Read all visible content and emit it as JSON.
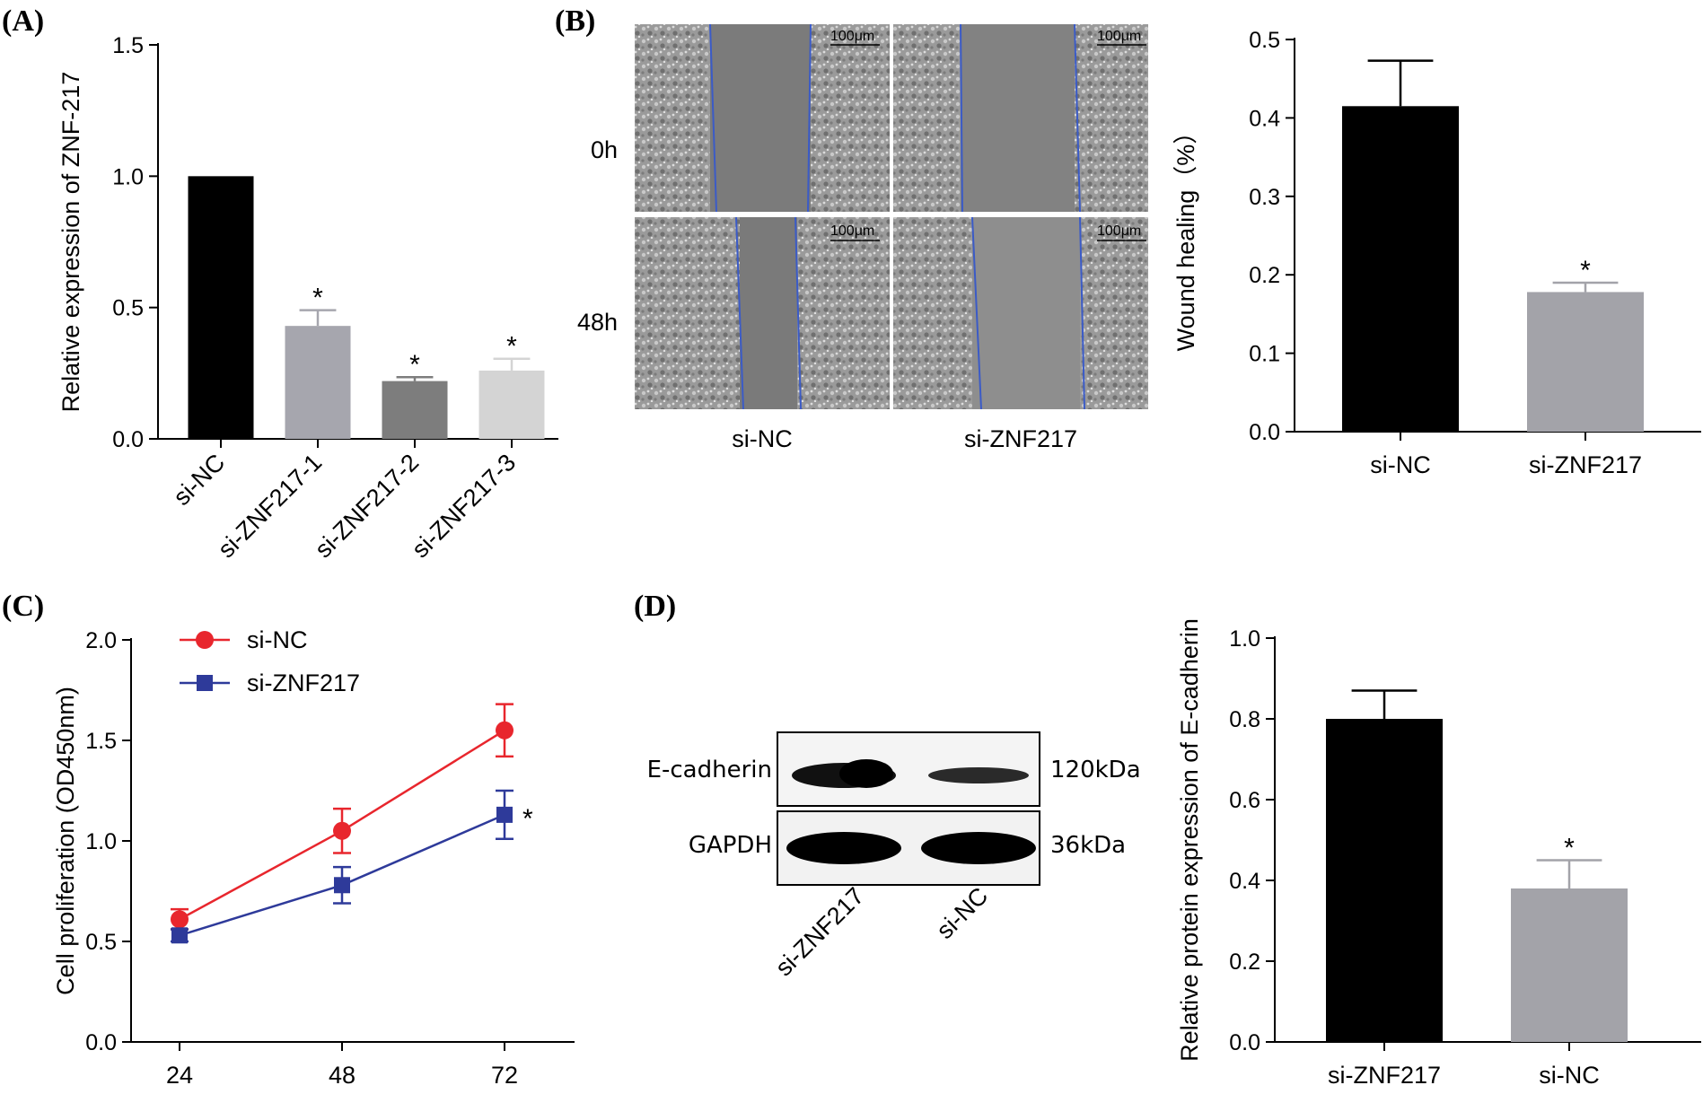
{
  "panels": {
    "A": {
      "label": "(A)"
    },
    "B": {
      "label": "(B)"
    },
    "C": {
      "label": "(C)"
    },
    "D": {
      "label": "(D)"
    }
  },
  "micrograph": {
    "rows": [
      "0h",
      "48h"
    ],
    "cols": [
      "si-NC",
      "si-ZNF217"
    ],
    "scale_bar": "100μm"
  },
  "blot": {
    "bands": [
      {
        "name": "E-cadherin",
        "size": "120kDa"
      },
      {
        "name": "GAPDH",
        "size": "36kDa"
      }
    ],
    "lanes": [
      "si-ZNF217",
      "si-NC"
    ]
  },
  "chart_data": [
    {
      "id": "A",
      "type": "bar",
      "categories": [
        "si-NC",
        "si-ZNF217-1",
        "si-ZNF217-2",
        "si-ZNF217-3"
      ],
      "values": [
        1.0,
        0.43,
        0.22,
        0.26
      ],
      "errors": [
        0,
        0.06,
        0.015,
        0.045
      ],
      "significance": [
        "",
        "*",
        "*",
        "*"
      ],
      "colors": [
        "#000000",
        "#a6a6ae",
        "#7d7d7d",
        "#d4d4d4"
      ],
      "ylabel": "Relative expression of ZNF-217",
      "ylim": [
        0,
        1.5
      ],
      "yticks": [
        "0.0",
        "0.5",
        "1.0",
        "1.5"
      ]
    },
    {
      "id": "B",
      "type": "bar",
      "categories": [
        "si-NC",
        "si-ZNF217"
      ],
      "values": [
        0.415,
        0.178
      ],
      "errors": [
        0.058,
        0.012
      ],
      "significance": [
        "",
        "*"
      ],
      "colors": [
        "#000000",
        "#a3a3a9"
      ],
      "ylabel": "Wound healing（%）",
      "ylim": [
        0,
        0.5
      ],
      "yticks": [
        "0.0",
        "0.1",
        "0.2",
        "0.3",
        "0.4",
        "0.5"
      ]
    },
    {
      "id": "C",
      "type": "line",
      "x": [
        24,
        48,
        72
      ],
      "xticks": [
        "24",
        "48",
        "72"
      ],
      "series": [
        {
          "name": "si-NC",
          "values": [
            0.61,
            1.05,
            1.55
          ],
          "errors": [
            0.05,
            0.11,
            0.13
          ],
          "color": "#e8262d",
          "marker": "circle"
        },
        {
          "name": "si-ZNF217",
          "values": [
            0.53,
            0.78,
            1.13
          ],
          "errors": [
            0.03,
            0.09,
            0.12
          ],
          "color": "#2e3a9a",
          "marker": "square"
        }
      ],
      "significance_label": "*",
      "ylabel": "Cell proliferation (OD450nm)",
      "ylim": [
        0,
        2.0
      ],
      "yticks": [
        "0.0",
        "0.5",
        "1.0",
        "1.5",
        "2.0"
      ],
      "legend": "top-left"
    },
    {
      "id": "D",
      "type": "bar",
      "categories": [
        "si-ZNF217",
        "si-NC"
      ],
      "values": [
        0.8,
        0.38
      ],
      "errors": [
        0.07,
        0.07
      ],
      "significance": [
        "",
        "*"
      ],
      "colors": [
        "#000000",
        "#a3a3a9"
      ],
      "ylabel": "Relative protein expression of E-cadherin",
      "ylim": [
        0,
        1.0
      ],
      "yticks": [
        "0.0",
        "0.2",
        "0.4",
        "0.6",
        "0.8",
        "1.0"
      ]
    }
  ]
}
